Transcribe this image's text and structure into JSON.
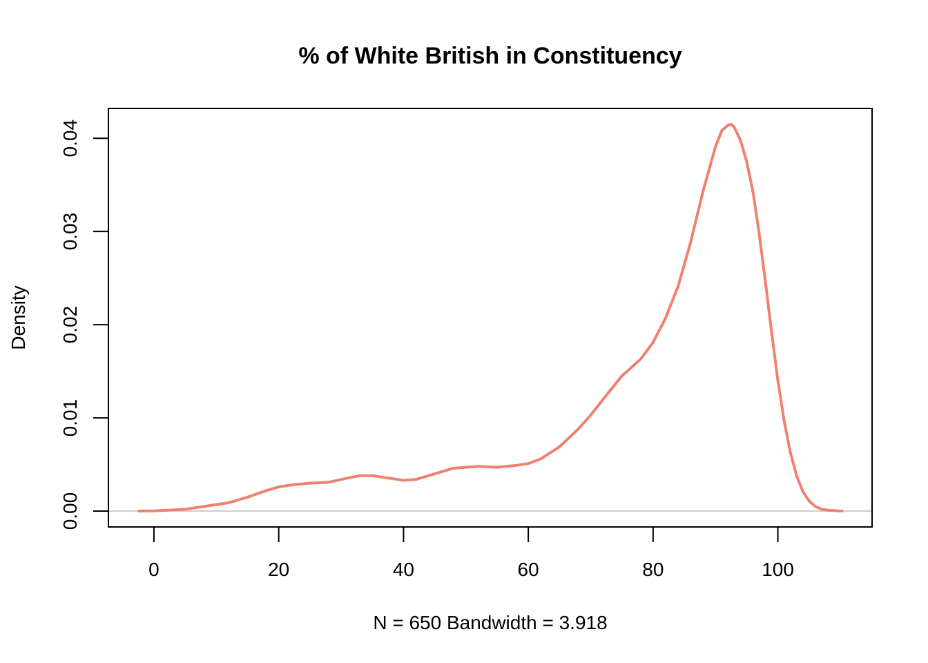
{
  "chart_data": {
    "type": "line",
    "title": "% of White British in Constituency",
    "xlabel": "N = 650   Bandwidth = 3.918",
    "ylabel": "Density",
    "xlim": [
      -7.3,
      115.1
    ],
    "ylim": [
      -0.0017,
      0.0432
    ],
    "x_ticks": [
      0,
      20,
      40,
      60,
      80,
      100
    ],
    "x_tick_labels": [
      "0",
      "20",
      "40",
      "60",
      "80",
      "100"
    ],
    "y_ticks": [
      0,
      0.01,
      0.02,
      0.03,
      0.04
    ],
    "y_tick_labels": [
      "0.00",
      "0.01",
      "0.02",
      "0.03",
      "0.04"
    ],
    "zero_line": true,
    "grid": false,
    "series": [
      {
        "color": "#F08070",
        "x": [
          -2.4,
          0,
          5,
          10,
          12,
          15,
          18,
          20,
          22,
          25,
          28,
          30,
          33,
          35,
          38,
          40,
          42,
          45,
          48,
          50,
          52,
          55,
          58,
          60,
          62,
          65,
          68,
          70,
          72,
          75,
          78,
          80,
          82,
          84,
          86,
          88,
          90,
          91,
          92,
          92.5,
          93,
          94,
          95,
          96,
          97,
          98,
          99,
          100,
          101,
          102,
          103,
          104,
          105,
          106,
          107,
          108,
          110.3
        ],
        "y": [
          0.0,
          2e-05,
          0.0002,
          0.0007,
          0.0009,
          0.0015,
          0.0022,
          0.0026,
          0.0028,
          0.003,
          0.0031,
          0.0034,
          0.0038,
          0.0038,
          0.0035,
          0.0033,
          0.0034,
          0.004,
          0.0046,
          0.0047,
          0.0048,
          0.0047,
          0.0049,
          0.0051,
          0.0056,
          0.0069,
          0.0088,
          0.0103,
          0.012,
          0.0145,
          0.0163,
          0.0181,
          0.0207,
          0.0241,
          0.0288,
          0.0343,
          0.0391,
          0.0408,
          0.0414,
          0.0415,
          0.0412,
          0.0398,
          0.0375,
          0.0343,
          0.0298,
          0.0246,
          0.0192,
          0.014,
          0.0097,
          0.0063,
          0.0038,
          0.0021,
          0.0011,
          0.0005,
          0.0002,
          0.0001,
          0.0
        ]
      }
    ]
  }
}
